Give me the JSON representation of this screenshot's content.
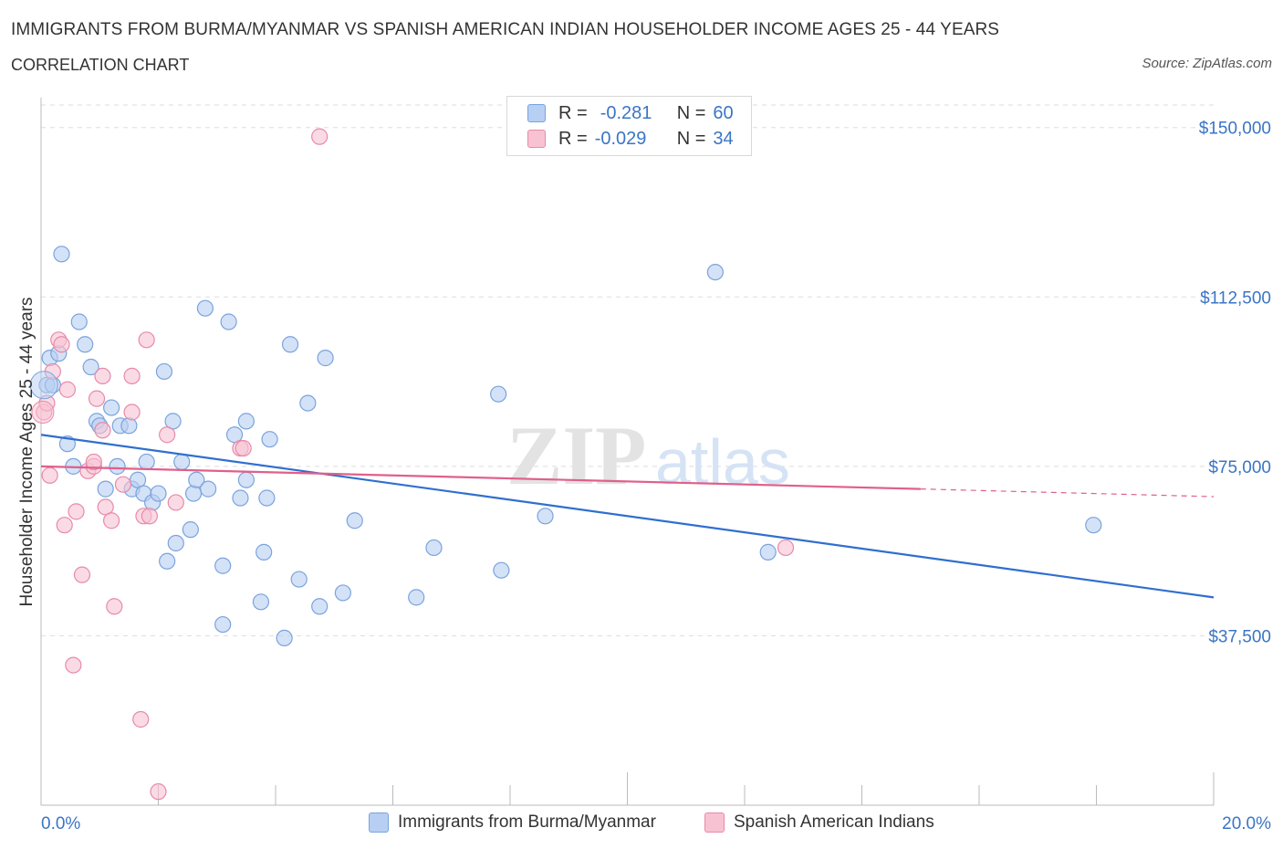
{
  "title": "IMMIGRANTS FROM BURMA/MYANMAR VS SPANISH AMERICAN INDIAN HOUSEHOLDER INCOME AGES 25 - 44 YEARS",
  "subtitle": "CORRELATION CHART",
  "source": "Source: ZipAtlas.com",
  "watermark": {
    "zip": "ZIP",
    "atlas": "atlas"
  },
  "legend": {
    "r_label": "R =",
    "n_label": "N =",
    "series1_r": "-0.281",
    "series1_n": "60",
    "series2_r": "-0.029",
    "series2_n": "34"
  },
  "colors": {
    "series1_fill": "#b7cff2",
    "series1_stroke": "#7aa3dd",
    "series1_line": "#2f6fcf",
    "series2_fill": "#f7c3d3",
    "series2_stroke": "#e88aa8",
    "series2_line": "#e0608a",
    "tick_label": "#3a75c4",
    "grid": "#dddddd"
  },
  "chart_data": {
    "type": "scatter",
    "title": "IMMIGRANTS FROM BURMA/MYANMAR VS SPANISH AMERICAN INDIAN HOUSEHOLDER INCOME AGES 25 - 44 YEARS",
    "xlabel": "",
    "ylabel": "Householder Income Ages 25 - 44 years",
    "xlim": [
      0,
      20
    ],
    "ylim": [
      0,
      155000
    ],
    "x_ticks": [
      "0.0%",
      "20.0%"
    ],
    "y_ticks": [
      {
        "value": 37500,
        "label": "$37,500"
      },
      {
        "value": 75000,
        "label": "$75,000"
      },
      {
        "value": 112500,
        "label": "$112,500"
      },
      {
        "value": 150000,
        "label": "$150,000"
      }
    ],
    "grid": true,
    "legend_position": "bottom",
    "series": [
      {
        "name": "Immigrants from Burma/Myanmar",
        "r": -0.281,
        "n": 60,
        "trend": {
          "x": [
            0.0,
            20.0
          ],
          "y": [
            82000,
            46000
          ]
        },
        "points": [
          [
            0.1,
            93000
          ],
          [
            0.15,
            99000
          ],
          [
            0.2,
            93000
          ],
          [
            0.3,
            100000
          ],
          [
            0.35,
            122000
          ],
          [
            0.45,
            80000
          ],
          [
            0.55,
            75000
          ],
          [
            0.65,
            107000
          ],
          [
            0.75,
            102000
          ],
          [
            0.85,
            97000
          ],
          [
            0.95,
            85000
          ],
          [
            1.0,
            84000
          ],
          [
            1.1,
            70000
          ],
          [
            1.2,
            88000
          ],
          [
            1.3,
            75000
          ],
          [
            1.35,
            84000
          ],
          [
            1.5,
            84000
          ],
          [
            1.55,
            70000
          ],
          [
            1.65,
            72000
          ],
          [
            1.75,
            69000
          ],
          [
            1.8,
            76000
          ],
          [
            1.9,
            67000
          ],
          [
            2.0,
            69000
          ],
          [
            2.1,
            96000
          ],
          [
            2.15,
            54000
          ],
          [
            2.25,
            85000
          ],
          [
            2.3,
            58000
          ],
          [
            2.4,
            76000
          ],
          [
            2.55,
            61000
          ],
          [
            2.6,
            69000
          ],
          [
            2.65,
            72000
          ],
          [
            2.8,
            110000
          ],
          [
            2.85,
            70000
          ],
          [
            3.1,
            40000
          ],
          [
            3.1,
            53000
          ],
          [
            3.2,
            107000
          ],
          [
            3.3,
            82000
          ],
          [
            3.4,
            68000
          ],
          [
            3.5,
            72000
          ],
          [
            3.5,
            85000
          ],
          [
            3.75,
            45000
          ],
          [
            3.8,
            56000
          ],
          [
            3.85,
            68000
          ],
          [
            3.9,
            81000
          ],
          [
            4.15,
            37000
          ],
          [
            4.25,
            102000
          ],
          [
            4.4,
            50000
          ],
          [
            4.55,
            89000
          ],
          [
            4.75,
            44000
          ],
          [
            4.85,
            99000
          ],
          [
            5.15,
            47000
          ],
          [
            5.35,
            63000
          ],
          [
            6.4,
            46000
          ],
          [
            6.7,
            57000
          ],
          [
            7.8,
            91000
          ],
          [
            7.85,
            52000
          ],
          [
            8.6,
            64000
          ],
          [
            11.5,
            118000
          ],
          [
            12.4,
            56000
          ],
          [
            17.95,
            62000
          ]
        ]
      },
      {
        "name": "Spanish American Indians",
        "r": -0.029,
        "n": 34,
        "trend": {
          "x": [
            0.0,
            15.0
          ],
          "y": [
            75000,
            70000
          ],
          "dashed_to": {
            "x": 20.0,
            "y": 68300
          }
        },
        "points": [
          [
            0.05,
            87000
          ],
          [
            0.1,
            89000
          ],
          [
            0.15,
            73000
          ],
          [
            0.2,
            96000
          ],
          [
            0.3,
            103000
          ],
          [
            0.35,
            102000
          ],
          [
            0.4,
            62000
          ],
          [
            0.45,
            92000
          ],
          [
            0.6,
            65000
          ],
          [
            0.7,
            51000
          ],
          [
            0.8,
            74000
          ],
          [
            0.9,
            75000
          ],
          [
            0.9,
            76000
          ],
          [
            0.95,
            90000
          ],
          [
            1.05,
            83000
          ],
          [
            1.05,
            95000
          ],
          [
            1.1,
            66000
          ],
          [
            1.2,
            63000
          ],
          [
            1.25,
            44000
          ],
          [
            0.55,
            31000
          ],
          [
            1.4,
            71000
          ],
          [
            1.55,
            87000
          ],
          [
            1.55,
            95000
          ],
          [
            1.7,
            19000
          ],
          [
            1.75,
            64000
          ],
          [
            1.8,
            103000
          ],
          [
            1.85,
            64000
          ],
          [
            2.0,
            3000
          ],
          [
            2.15,
            82000
          ],
          [
            2.3,
            67000
          ],
          [
            3.4,
            79000
          ],
          [
            3.45,
            79000
          ],
          [
            4.75,
            148000
          ],
          [
            12.7,
            57000
          ]
        ]
      }
    ]
  }
}
